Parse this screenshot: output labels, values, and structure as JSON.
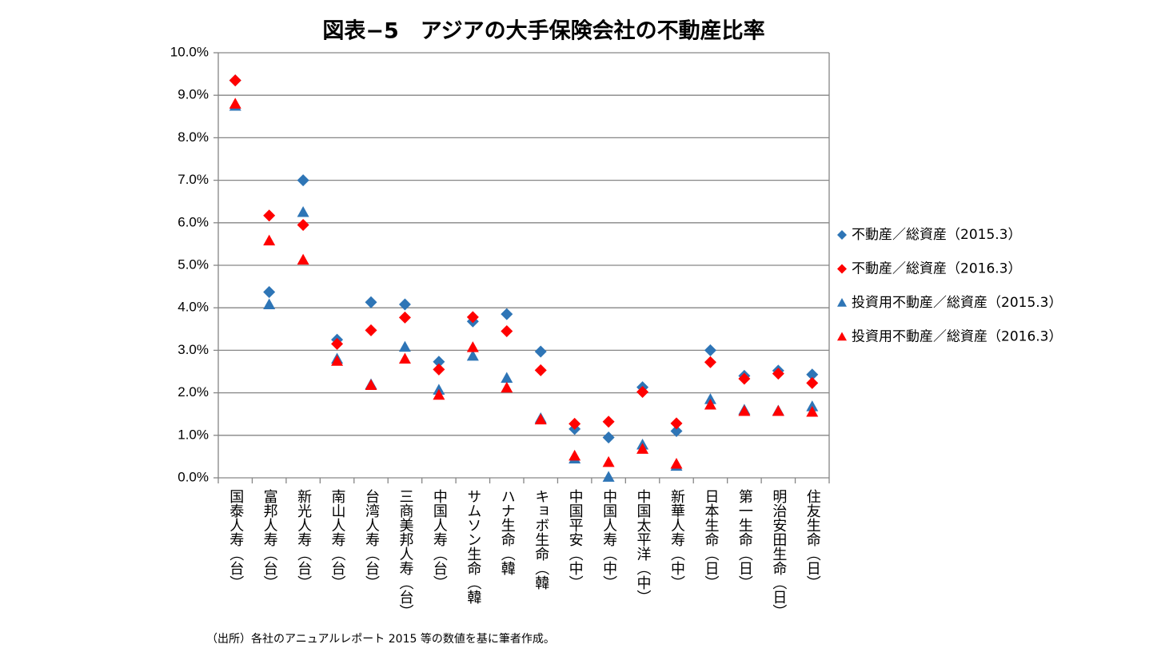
{
  "chart_data": {
    "type": "scatter",
    "title": "図表−5　アジアの大手保険会社の不動産比率",
    "note": "（出所）各社のアニュアルレポート 2015 等の数値を基に筆者作成。",
    "categories": [
      "国泰人寿（台）",
      "富邦人寿（台）",
      "新光人寿（台）",
      "南山人寿（台）",
      "台湾人寿（台）",
      "三商美邦人寿（台）",
      "中国人寿（台）",
      "サムソン生命（韓",
      "ハナ生命（韓",
      "キョボ生命（韓",
      "中国平安（中）",
      "中国人寿（中）",
      "中国太平洋（中）",
      "新華人寿（中）",
      "日本生命（日）",
      "第一生命（日）",
      "明治安田生命（日）",
      "住友生命（日）"
    ],
    "series": [
      {
        "name": "不動産／総資産（2015.3）",
        "color": "#2e75b6",
        "marker": "diamond",
        "values": [
          9.35,
          4.37,
          7.0,
          3.25,
          4.13,
          4.08,
          2.73,
          3.68,
          3.85,
          2.97,
          1.15,
          0.95,
          2.13,
          1.1,
          3.0,
          2.4,
          2.52,
          2.43
        ]
      },
      {
        "name": "不動産／総資産（2016.3）",
        "color": "#ff0000",
        "marker": "diamond",
        "values": [
          9.35,
          6.17,
          5.95,
          3.15,
          3.47,
          3.77,
          2.55,
          3.78,
          3.45,
          2.53,
          1.27,
          1.32,
          2.02,
          1.28,
          2.72,
          2.33,
          2.45,
          2.23
        ]
      },
      {
        "name": "投資用不動産／総資産（2015.3）",
        "color": "#2e75b6",
        "marker": "triangle",
        "values": [
          8.75,
          4.08,
          6.25,
          2.8,
          2.2,
          3.08,
          2.07,
          2.87,
          2.35,
          1.4,
          0.45,
          0.02,
          0.78,
          0.28,
          1.85,
          1.6,
          1.58,
          1.68
        ]
      },
      {
        "name": "投資用不動産／総資産（2016.3）",
        "color": "#ff0000",
        "marker": "triangle",
        "values": [
          8.8,
          5.58,
          5.13,
          2.75,
          2.18,
          2.8,
          1.95,
          3.07,
          2.12,
          1.37,
          0.52,
          0.37,
          0.68,
          0.33,
          1.72,
          1.57,
          1.57,
          1.55
        ]
      }
    ],
    "ylim": [
      0,
      10
    ],
    "yticks": [
      {
        "value": 0,
        "label": "0.0%"
      },
      {
        "value": 1,
        "label": "1.0%"
      },
      {
        "value": 2,
        "label": "2.0%"
      },
      {
        "value": 3,
        "label": "3.0%"
      },
      {
        "value": 4,
        "label": "4.0%"
      },
      {
        "value": 5,
        "label": "5.0%"
      },
      {
        "value": 6,
        "label": "6.0%"
      },
      {
        "value": 7,
        "label": "7.0%"
      },
      {
        "value": 8,
        "label": "8.0%"
      },
      {
        "value": 9,
        "label": "9.0%"
      },
      {
        "value": 10,
        "label": "10.0%"
      }
    ],
    "grid": true,
    "legend": "right"
  }
}
